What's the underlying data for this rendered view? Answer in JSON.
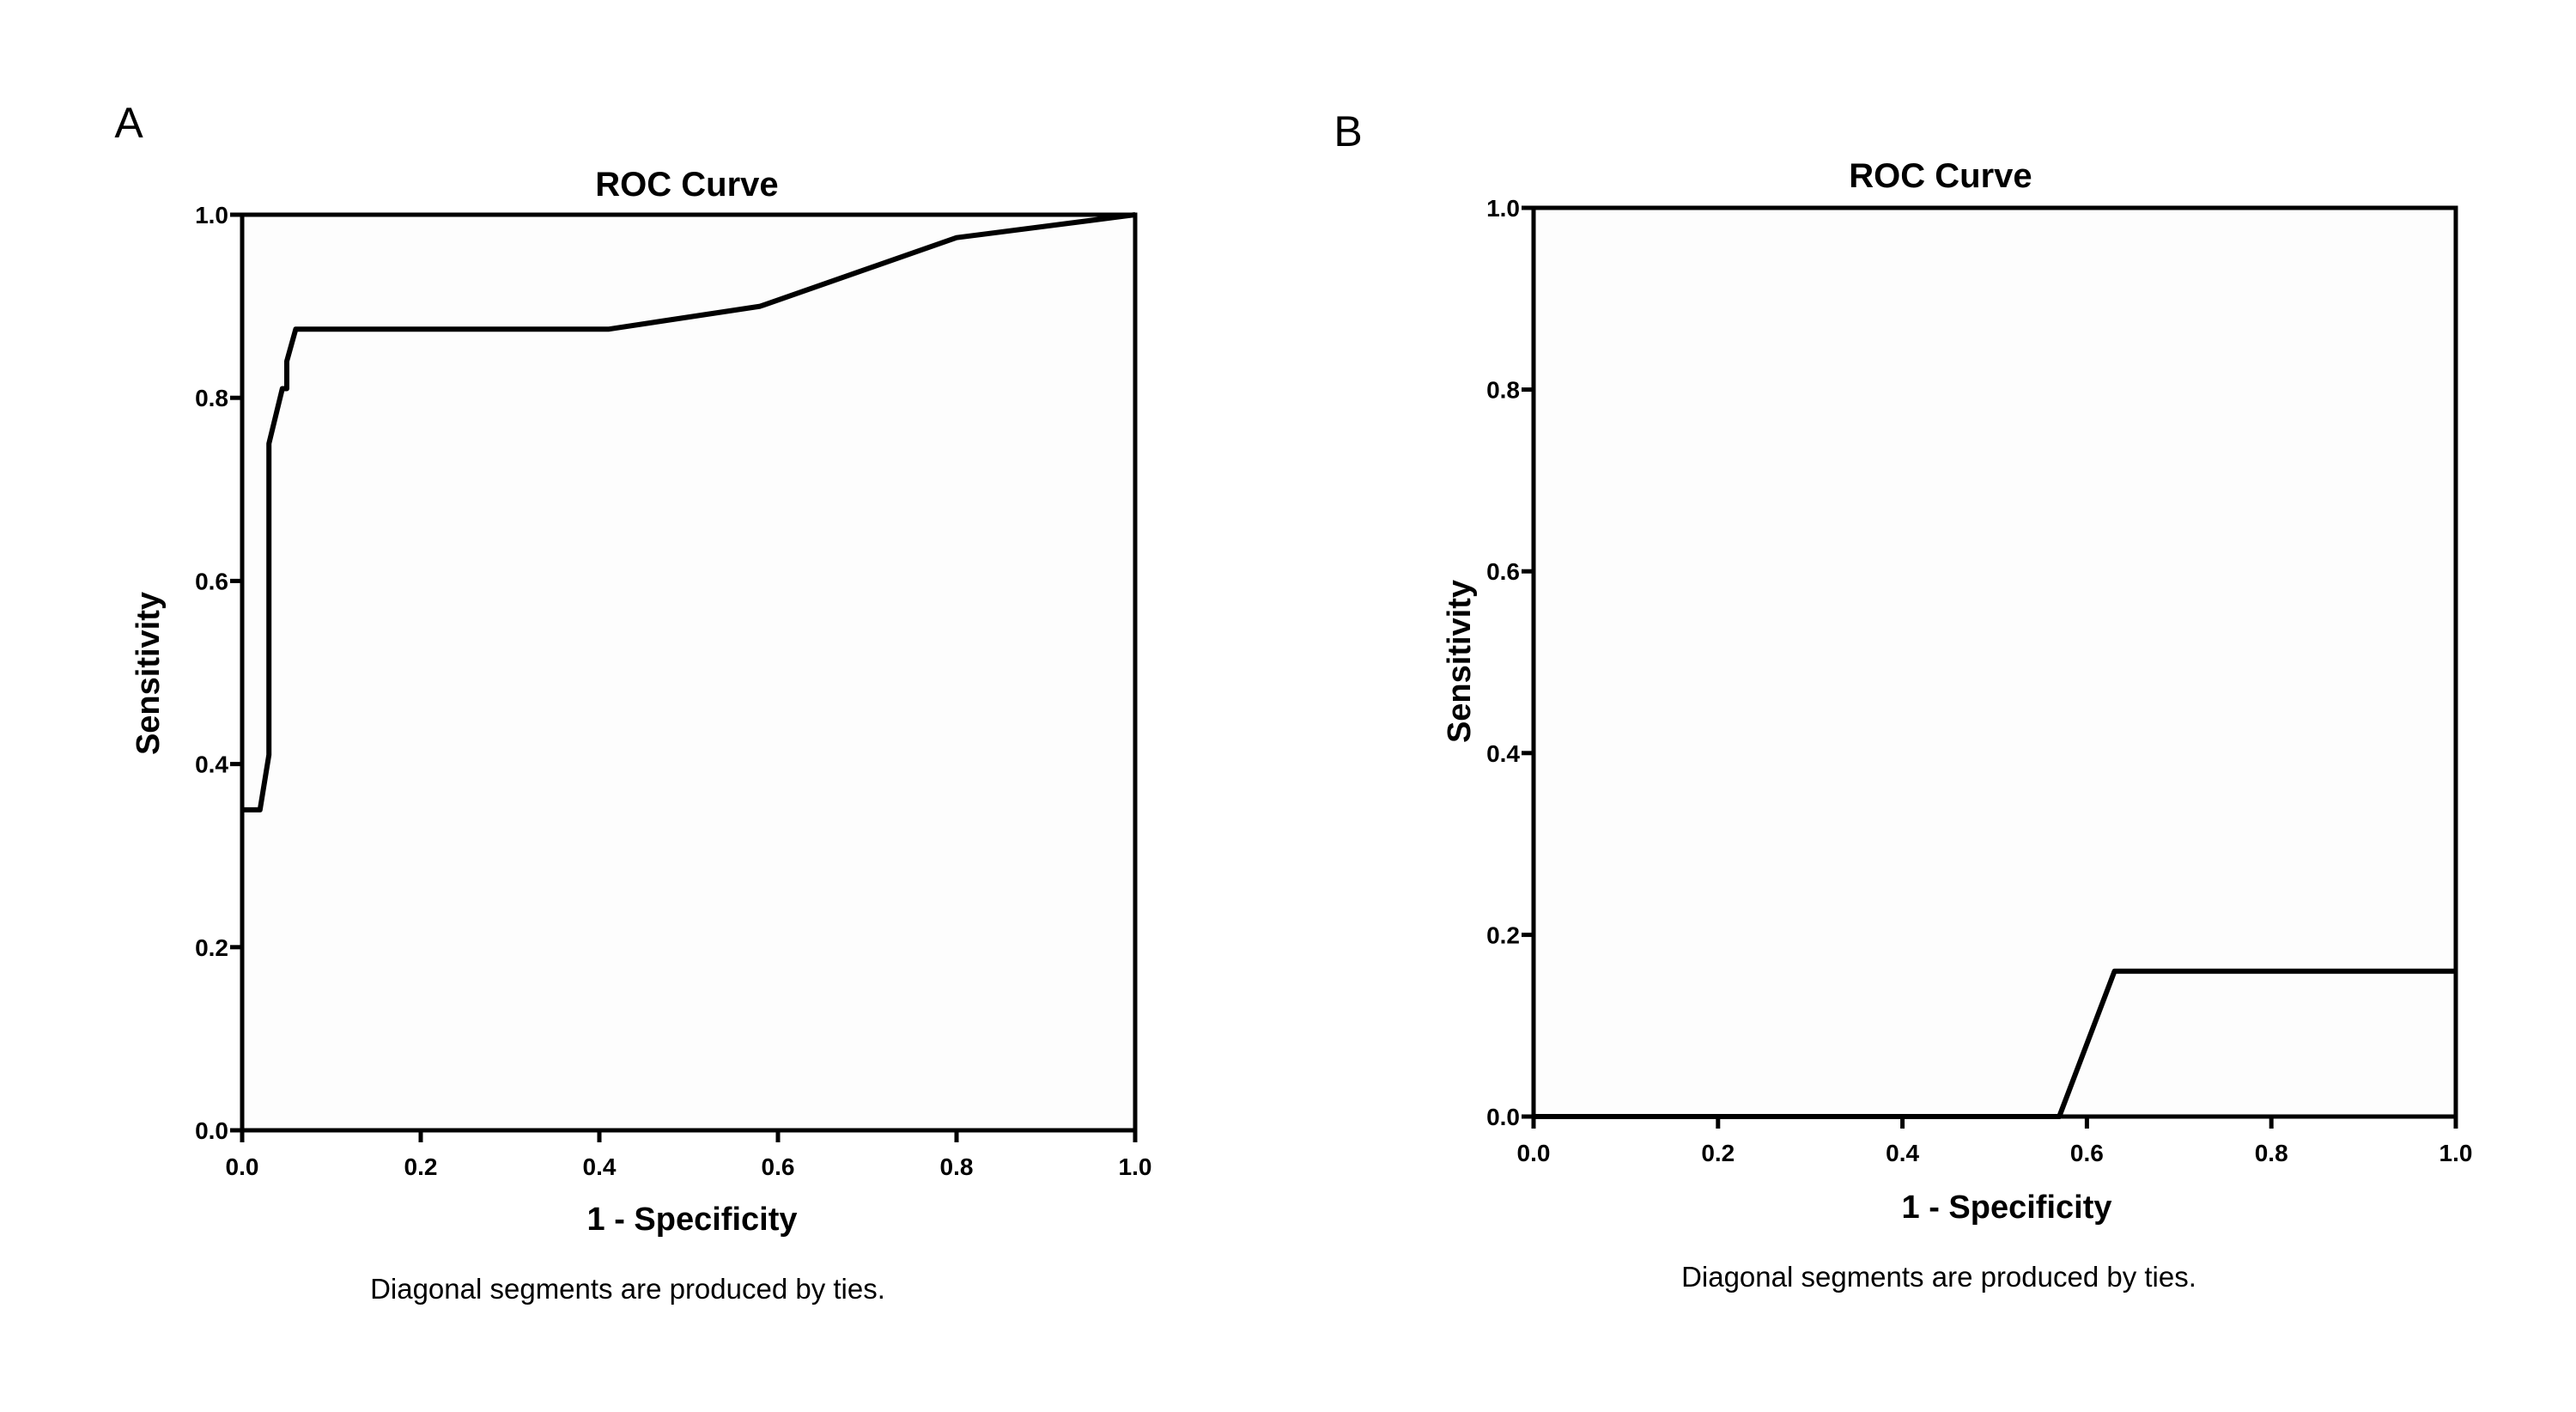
{
  "chart_data": [
    {
      "type": "line",
      "panel_label": "A",
      "title": "ROC Curve",
      "xlabel": "1 - Specificity",
      "ylabel": "Sensitivity",
      "footnote": "Diagonal segments are produced by ties.",
      "xlim": [
        0,
        1
      ],
      "ylim": [
        0,
        1
      ],
      "xticks": [
        "0.0",
        "0.2",
        "0.4",
        "0.6",
        "0.8",
        "1.0"
      ],
      "yticks": [
        "0.0",
        "0.2",
        "0.4",
        "0.6",
        "0.8",
        "1.0"
      ],
      "grid": false,
      "line_color": "#000000",
      "background_color": "#fdfdfd",
      "x": [
        0.0,
        0.02,
        0.03,
        0.03,
        0.045,
        0.05,
        0.05,
        0.06,
        0.41,
        0.58,
        0.8,
        1.0
      ],
      "y": [
        0.35,
        0.35,
        0.41,
        0.75,
        0.81,
        0.81,
        0.84,
        0.875,
        0.875,
        0.9,
        0.975,
        1.0
      ]
    },
    {
      "type": "line",
      "panel_label": "B",
      "title": "ROC Curve",
      "xlabel": "1 - Specificity",
      "ylabel": "Sensitivity",
      "footnote": "Diagonal segments are produced by ties.",
      "xlim": [
        0,
        1
      ],
      "ylim": [
        0,
        1
      ],
      "xticks": [
        "0.0",
        "0.2",
        "0.4",
        "0.6",
        "0.8",
        "1.0"
      ],
      "yticks": [
        "0.0",
        "0.2",
        "0.4",
        "0.6",
        "0.8",
        "1.0"
      ],
      "grid": false,
      "line_color": "#000000",
      "background_color": "#fdfdfd",
      "x": [
        0.0,
        0.57,
        0.63,
        1.0
      ],
      "y": [
        0.0,
        0.0,
        0.16,
        0.16
      ]
    }
  ]
}
